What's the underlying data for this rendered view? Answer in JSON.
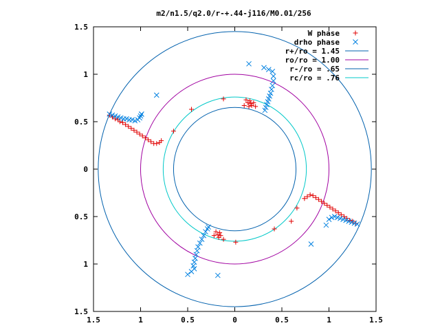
{
  "chart_data": {
    "type": "scatter",
    "title": "m2/n1.5/q2.0/r-+.44-j116/M0.01/256",
    "xlim": [
      -1.5,
      1.5
    ],
    "ylim": [
      -1.5,
      1.5
    ],
    "x_ticks": [
      -1.5,
      -1,
      -0.5,
      0,
      0.5,
      1,
      1.5
    ],
    "y_ticks": [
      -1.5,
      -1,
      -0.5,
      0,
      0.5,
      1,
      1.5
    ],
    "x_tick_labels": [
      "1.5",
      "1",
      "0.5",
      "0",
      "0.5",
      "1",
      "1.5"
    ],
    "y_tick_labels": [
      "1.5",
      "1",
      "0.5",
      "0",
      "0.5",
      "1",
      "1.5"
    ],
    "grid": false,
    "legend_position": "top-right",
    "circles": [
      {
        "label": "r+/ro = 1.45",
        "r": 1.45,
        "color": "#0060ad"
      },
      {
        "label": "ro/ro = 1.00",
        "r": 1.0,
        "color": "#a000a0"
      },
      {
        "label": "r-/ro = .65",
        "r": 0.65,
        "color": "#0060ad"
      },
      {
        "label": "rc/ro = .76",
        "r": 0.76,
        "color": "#00c8c8"
      }
    ],
    "series": [
      {
        "name": "W phase",
        "marker": "plus",
        "color": "#e00000",
        "points": [
          [
            -1.33,
            0.57
          ],
          [
            -1.3,
            0.55
          ],
          [
            -1.27,
            0.53
          ],
          [
            -1.24,
            0.52
          ],
          [
            -1.22,
            0.5
          ],
          [
            -1.19,
            0.49
          ],
          [
            -1.16,
            0.47
          ],
          [
            -1.13,
            0.45
          ],
          [
            -1.1,
            0.43
          ],
          [
            -1.07,
            0.41
          ],
          [
            -1.04,
            0.39
          ],
          [
            -1.01,
            0.37
          ],
          [
            -0.98,
            0.35
          ],
          [
            -0.95,
            0.33
          ],
          [
            -0.92,
            0.31
          ],
          [
            -0.89,
            0.29
          ],
          [
            -0.86,
            0.27
          ],
          [
            -0.83,
            0.27
          ],
          [
            -0.8,
            0.28
          ],
          [
            -0.78,
            0.3
          ],
          [
            -0.65,
            0.4
          ],
          [
            -0.46,
            0.63
          ],
          [
            -0.12,
            0.74
          ],
          [
            0.1,
            0.67
          ],
          [
            0.12,
            0.73
          ],
          [
            0.14,
            0.7
          ],
          [
            0.15,
            0.66
          ],
          [
            0.16,
            0.72
          ],
          [
            0.17,
            0.69
          ],
          [
            0.18,
            0.67
          ],
          [
            0.2,
            0.7
          ],
          [
            0.22,
            0.66
          ],
          [
            1.28,
            -0.57
          ],
          [
            1.25,
            -0.55
          ],
          [
            1.22,
            -0.54
          ],
          [
            1.19,
            -0.52
          ],
          [
            1.16,
            -0.5
          ],
          [
            1.13,
            -0.48
          ],
          [
            1.1,
            -0.46
          ],
          [
            1.07,
            -0.44
          ],
          [
            1.04,
            -0.42
          ],
          [
            1.01,
            -0.4
          ],
          [
            0.98,
            -0.38
          ],
          [
            0.95,
            -0.36
          ],
          [
            0.92,
            -0.34
          ],
          [
            0.89,
            -0.32
          ],
          [
            0.86,
            -0.3
          ],
          [
            0.83,
            -0.28
          ],
          [
            0.8,
            -0.27
          ],
          [
            0.77,
            -0.29
          ],
          [
            0.74,
            -0.31
          ],
          [
            0.66,
            -0.41
          ],
          [
            0.6,
            -0.55
          ],
          [
            0.42,
            -0.63
          ],
          [
            0.01,
            -0.77
          ],
          [
            -0.12,
            -0.74
          ],
          [
            -0.15,
            -0.7
          ],
          [
            -0.16,
            -0.67
          ],
          [
            -0.17,
            -0.72
          ],
          [
            -0.18,
            -0.69
          ],
          [
            -0.2,
            -0.66
          ],
          [
            -0.22,
            -0.7
          ]
        ]
      },
      {
        "name": "drho phase",
        "marker": "cross",
        "color": "#0080e0",
        "points": [
          [
            -1.33,
            0.58
          ],
          [
            -1.3,
            0.57
          ],
          [
            -1.27,
            0.56
          ],
          [
            -1.24,
            0.55
          ],
          [
            -1.21,
            0.54
          ],
          [
            -1.18,
            0.53
          ],
          [
            -1.15,
            0.53
          ],
          [
            -1.12,
            0.52
          ],
          [
            -1.09,
            0.52
          ],
          [
            -1.06,
            0.51
          ],
          [
            -1.03,
            0.52
          ],
          [
            -1.01,
            0.54
          ],
          [
            -1.0,
            0.56
          ],
          [
            -0.99,
            0.58
          ],
          [
            -0.83,
            0.78
          ],
          [
            -0.99,
            0.58
          ],
          [
            0.15,
            1.11
          ],
          [
            0.31,
            1.07
          ],
          [
            0.36,
            1.05
          ],
          [
            0.4,
            1.03
          ],
          [
            0.41,
            0.98
          ],
          [
            0.41,
            0.93
          ],
          [
            0.4,
            0.88
          ],
          [
            0.39,
            0.84
          ],
          [
            0.38,
            0.8
          ],
          [
            0.37,
            0.77
          ],
          [
            0.36,
            0.74
          ],
          [
            0.35,
            0.71
          ],
          [
            0.34,
            0.68
          ],
          [
            0.33,
            0.65
          ],
          [
            0.32,
            0.62
          ],
          [
            -0.46,
            -1.08
          ],
          [
            -0.43,
            -1.05
          ],
          [
            -0.44,
            -1.02
          ],
          [
            -0.43,
            -0.98
          ],
          [
            -0.42,
            -0.94
          ],
          [
            -0.41,
            -0.9
          ],
          [
            -0.4,
            -0.86
          ],
          [
            -0.39,
            -0.82
          ],
          [
            -0.37,
            -0.78
          ],
          [
            -0.35,
            -0.74
          ],
          [
            -0.33,
            -0.7
          ],
          [
            -0.31,
            -0.66
          ],
          [
            -0.29,
            -0.63
          ],
          [
            -0.28,
            -0.61
          ],
          [
            -0.18,
            -1.12
          ],
          [
            -0.5,
            -1.11
          ],
          [
            0.81,
            -0.79
          ],
          [
            0.97,
            -0.59
          ],
          [
            1.0,
            -0.53
          ],
          [
            1.03,
            -0.51
          ],
          [
            1.06,
            -0.5
          ],
          [
            1.09,
            -0.51
          ],
          [
            1.12,
            -0.52
          ],
          [
            1.15,
            -0.53
          ],
          [
            1.18,
            -0.54
          ],
          [
            1.21,
            -0.55
          ],
          [
            1.24,
            -0.56
          ],
          [
            1.27,
            -0.57
          ],
          [
            1.3,
            -0.58
          ]
        ]
      }
    ]
  }
}
